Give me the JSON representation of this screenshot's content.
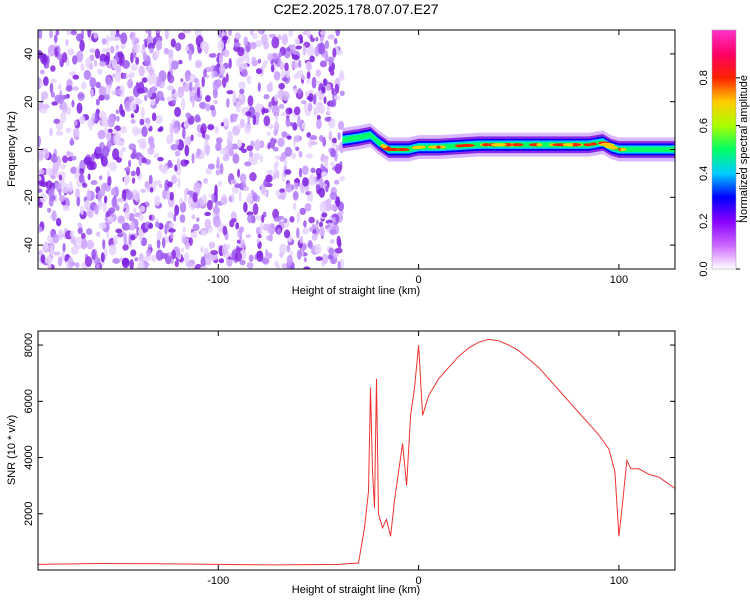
{
  "title": "C2E2.2025.178.07.07.E27",
  "chart_data": [
    {
      "type": "heatmap",
      "xlabel": "Height of straight line (km)",
      "ylabel": "Frequency (Hz)",
      "xlim": [
        -190,
        128
      ],
      "ylim": [
        -50,
        50
      ],
      "x_ticks": [
        -100,
        0,
        100
      ],
      "x_tick_labels": [
        "-100",
        "0",
        "100"
      ],
      "y_ticks": [
        -40,
        -20,
        0,
        20,
        40
      ],
      "y_tick_labels": [
        "-40",
        "-20",
        "0",
        "20",
        "40"
      ],
      "noise_region": {
        "x": [
          -190,
          -38
        ],
        "y": [
          -50,
          50
        ]
      },
      "signal_band": {
        "x": [
          -38,
          128
        ],
        "center_freq_hz": [
          [
            -38,
            4
          ],
          [
            -30,
            5
          ],
          [
            -24,
            6
          ],
          [
            -20,
            3
          ],
          [
            -15,
            0
          ],
          [
            -5,
            0
          ],
          [
            0,
            1
          ],
          [
            10,
            1
          ],
          [
            30,
            2
          ],
          [
            60,
            2
          ],
          [
            85,
            2
          ],
          [
            92,
            3
          ],
          [
            96,
            1
          ],
          [
            100,
            0
          ],
          [
            110,
            0
          ],
          [
            128,
            0
          ]
        ],
        "bandwidth_hz": 5
      },
      "colorbar": {
        "label": "Normalized spectral amplitude",
        "range": [
          0,
          1
        ],
        "ticks": [
          0.0,
          0.2,
          0.4,
          0.6,
          0.8
        ],
        "tick_labels": [
          "0.0",
          "0.2",
          "0.4",
          "0.6",
          "0.8"
        ],
        "colors": [
          "#ffffff",
          "#cc66ff",
          "#8800ff",
          "#0000ff",
          "#00ccff",
          "#00ff66",
          "#aaff00",
          "#ffcc00",
          "#ff2200",
          "#ff0066",
          "#ff33cc"
        ]
      }
    },
    {
      "type": "line",
      "xlabel": "Height of straight line (km)",
      "ylabel": "SNR (10 * v/v)",
      "xlim": [
        -190,
        128
      ],
      "ylim": [
        0,
        8500
      ],
      "x_ticks": [
        -100,
        0,
        100
      ],
      "x_tick_labels": [
        "-100",
        "0",
        "100"
      ],
      "y_ticks": [
        2000,
        4000,
        6000,
        8000
      ],
      "y_tick_labels": [
        "2000",
        "4000",
        "6000",
        "8000"
      ],
      "line_color": "#ee3333",
      "series": [
        {
          "x": [
            -190,
            -160,
            -130,
            -100,
            -70,
            -40,
            -30,
            -27,
            -25,
            -24,
            -23,
            -22,
            -21,
            -20,
            -18,
            -16,
            -14,
            -12,
            -10,
            -8,
            -6,
            -4,
            -2,
            0,
            2,
            5,
            10,
            15,
            20,
            25,
            30,
            35,
            40,
            45,
            50,
            55,
            60,
            65,
            70,
            75,
            80,
            85,
            90,
            95,
            98,
            100,
            102,
            104,
            106,
            110,
            115,
            120,
            128
          ],
          "y": [
            200,
            230,
            220,
            200,
            180,
            200,
            250,
            1500,
            2800,
            6500,
            3500,
            2200,
            6800,
            2000,
            1500,
            1800,
            1200,
            2500,
            3500,
            4500,
            3000,
            5500,
            6500,
            8000,
            5500,
            6200,
            6800,
            7200,
            7600,
            7900,
            8100,
            8200,
            8150,
            8000,
            7800,
            7500,
            7200,
            6800,
            6400,
            6000,
            5600,
            5200,
            4800,
            4300,
            3500,
            1200,
            2500,
            3900,
            3600,
            3600,
            3400,
            3300,
            2900
          ]
        }
      ]
    }
  ]
}
